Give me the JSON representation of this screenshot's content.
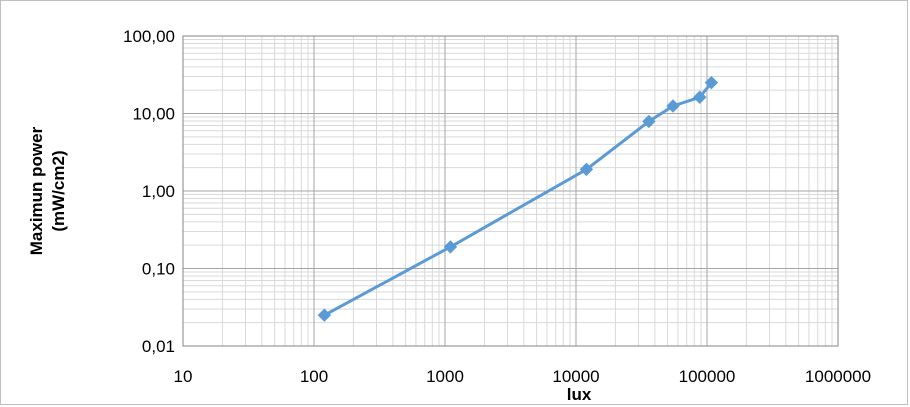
{
  "chart_data": {
    "type": "line",
    "xscale": "log",
    "yscale": "log",
    "xlim": [
      10,
      1000000
    ],
    "ylim": [
      0.01,
      100
    ],
    "xticks": [
      10,
      100,
      1000,
      10000,
      100000,
      1000000
    ],
    "xtick_labels": [
      "10",
      "100",
      "1000",
      "10000",
      "100000",
      "1000000"
    ],
    "yticks": [
      0.01,
      0.1,
      1,
      10,
      100
    ],
    "ytick_labels": [
      "0,01",
      "0,10",
      "1,00",
      "10,00",
      "100,00"
    ],
    "xlabel": "lux",
    "ylabel_lines": [
      "Maximun power",
      "(mW/cm2)"
    ],
    "grid": "major and minor",
    "legend": "none",
    "series": [
      {
        "x": [
          120,
          1100,
          12000,
          36000,
          55000,
          88000,
          108000
        ],
        "y": [
          0.025,
          0.19,
          1.9,
          7.9,
          12.5,
          16.2,
          25.0
        ],
        "color": "#5b9bd5",
        "marker": "diamond"
      }
    ]
  }
}
